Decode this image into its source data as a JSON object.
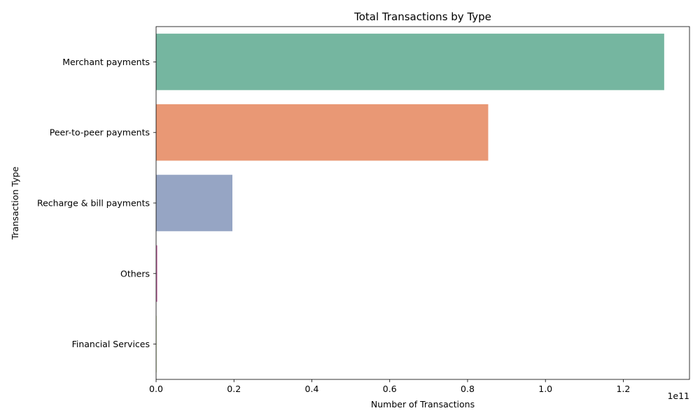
{
  "chart_data": {
    "type": "bar",
    "orientation": "horizontal",
    "title": "Total Transactions by Type",
    "xlabel": "Number of Transactions",
    "ylabel": "Transaction Type",
    "x_offset_label": "1e11",
    "xlim": [
      0,
      1.37
    ],
    "x_ticks": [
      "0.0",
      "0.2",
      "0.4",
      "0.6",
      "0.8",
      "1.0",
      "1.2"
    ],
    "x_tick_values": [
      0,
      0.2,
      0.4,
      0.6,
      0.8,
      1.0,
      1.2
    ],
    "categories": [
      "Merchant payments",
      "Peer-to-peer payments",
      "Recharge & bill payments",
      "Others",
      "Financial Services"
    ],
    "values": [
      1.305,
      0.853,
      0.196,
      0.003,
      0.0003
    ],
    "colors": [
      "#75b6a0",
      "#e99875",
      "#96a5c4",
      "#c96ea8",
      "#a6c45a"
    ],
    "grid": false,
    "legend": "none"
  }
}
